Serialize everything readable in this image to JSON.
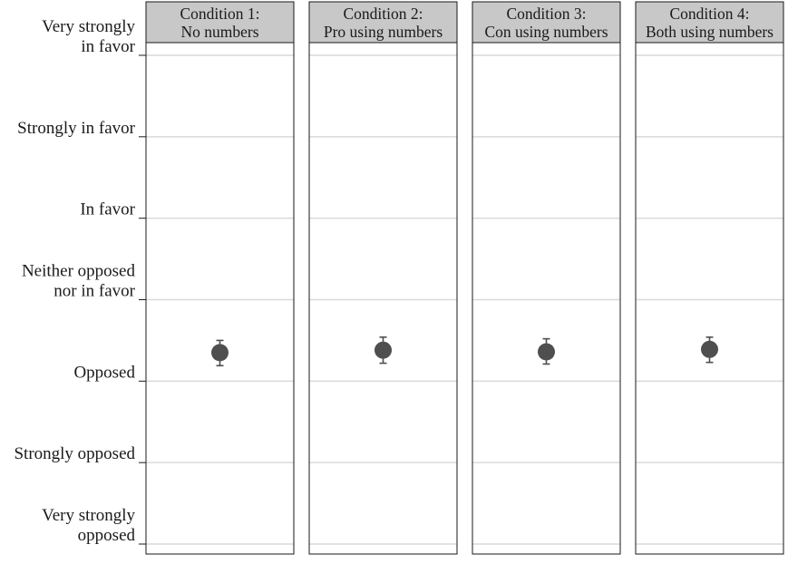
{
  "chart_data": {
    "type": "scatter",
    "y_categories": [
      [
        "Very strongly",
        "in favor"
      ],
      [
        "Strongly in favor"
      ],
      [
        "In favor"
      ],
      [
        "Neither opposed",
        "nor in favor"
      ],
      [
        "Opposed"
      ],
      [
        "Strongly opposed"
      ],
      [
        "Very strongly",
        "opposed"
      ]
    ],
    "y_scale": [
      7,
      6,
      5,
      4,
      3,
      2,
      1
    ],
    "ylim": [
      1,
      7
    ],
    "grid": true,
    "panels": [
      {
        "title_line1": "Condition 1:",
        "title_line2": "No numbers",
        "mean": 3.35,
        "ci_low": 3.19,
        "ci_high": 3.5
      },
      {
        "title_line1": "Condition 2:",
        "title_line2": "Pro using numbers",
        "mean": 3.38,
        "ci_low": 3.22,
        "ci_high": 3.54
      },
      {
        "title_line1": "Condition 3:",
        "title_line2": "Con using numbers",
        "mean": 3.36,
        "ci_low": 3.21,
        "ci_high": 3.52
      },
      {
        "title_line1": "Condition 4:",
        "title_line2": "Both using numbers",
        "mean": 3.39,
        "ci_low": 3.23,
        "ci_high": 3.54
      }
    ],
    "colors": {
      "point": "#4f4f4f",
      "panel_header": "#c8c8c8",
      "gridline": "#d9d9d9",
      "border": "#1a1a1a"
    }
  }
}
